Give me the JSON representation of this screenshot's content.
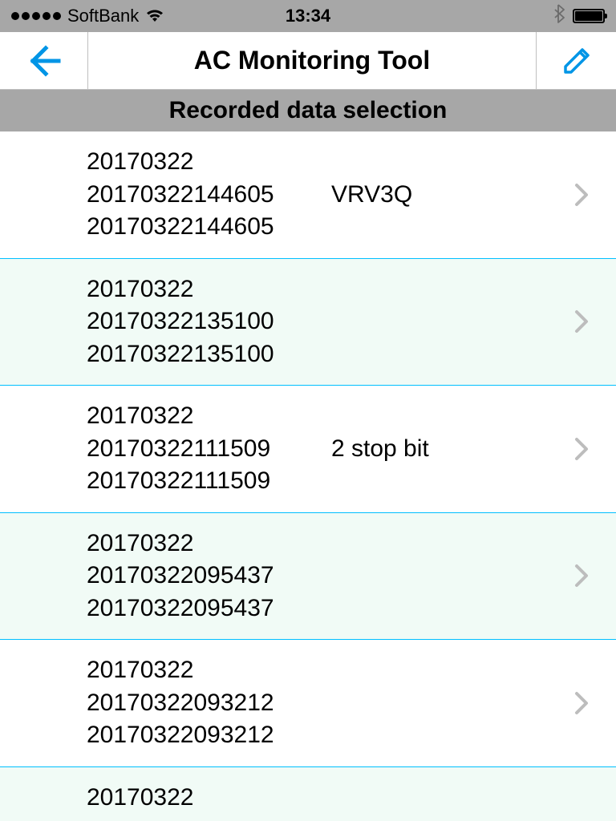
{
  "status_bar": {
    "carrier": "SoftBank",
    "time": "13:34",
    "background": "#a7a7a7",
    "icon_color": "#000000",
    "bluetooth_color": "#6b6b6b"
  },
  "nav": {
    "title": "AC Monitoring Tool",
    "border_color": "#bfbfbf",
    "accent_color": "#0095e6"
  },
  "section_header": {
    "label": "Recorded data selection",
    "background": "#a7a7a7"
  },
  "list": {
    "row_border_color": "#00bfff",
    "alt_background": "#f1fbf6",
    "chevron_color": "#bdbdbd",
    "text_color": "#000000",
    "font_size": 30,
    "items": [
      {
        "line1": "20170322",
        "line2a": "20170322144605",
        "line2b": "VRV3Q",
        "line3": "20170322144605",
        "alt": false
      },
      {
        "line1": "20170322",
        "line2a": "20170322135100",
        "line2b": "",
        "line3": "20170322135100",
        "alt": true
      },
      {
        "line1": "20170322",
        "line2a": "20170322111509",
        "line2b": "2 stop bit",
        "line3": "20170322111509",
        "alt": false
      },
      {
        "line1": "20170322",
        "line2a": "20170322095437",
        "line2b": "",
        "line3": "20170322095437",
        "alt": true
      },
      {
        "line1": "20170322",
        "line2a": "20170322093212",
        "line2b": "",
        "line3": "20170322093212",
        "alt": false
      },
      {
        "line1": "20170322",
        "line2a": "",
        "line2b": "",
        "line3": "",
        "alt": true
      }
    ]
  }
}
